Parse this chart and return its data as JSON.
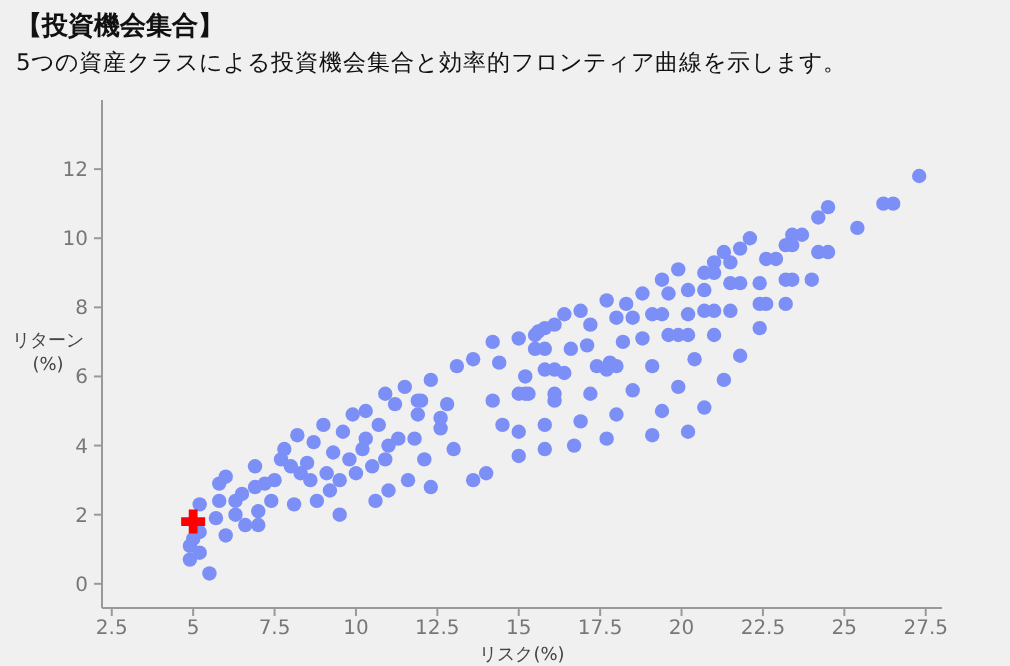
{
  "chart_data": {
    "type": "scatter",
    "title": "【投資機会集合】",
    "subtitle": "5つの資産クラスによる投資機会集合と効率的フロンティア曲線を示します。",
    "xlabel": "リスク(%)",
    "ylabel": "リターン\n(%)",
    "xlim": [
      2.2,
      28
    ],
    "ylim": [
      -0.7,
      14
    ],
    "xticks": [
      2.5,
      5,
      7.5,
      10,
      12.5,
      15,
      17.5,
      20,
      22.5,
      25,
      27.5
    ],
    "yticks": [
      0,
      2,
      4,
      6,
      8,
      10,
      12
    ],
    "grid": false,
    "series": [
      {
        "marker": "circle",
        "color": "#7b8ff7",
        "x": [
          4.9,
          5.0,
          5.2,
          5.5,
          5.2,
          5.2,
          5.7,
          6.0,
          5.8,
          5.8,
          6.0,
          6.3,
          6.3,
          6.6,
          6.9,
          6.9,
          7.0,
          7.0,
          7.4,
          7.5,
          7.7,
          7.8,
          8.1,
          8.2,
          8.3,
          8.5,
          8.7,
          8.8,
          9.0,
          9.1,
          9.2,
          9.5,
          9.5,
          9.8,
          9.9,
          10.0,
          10.3,
          10.3,
          10.6,
          10.7,
          10.9,
          11.0,
          11.2,
          11.3,
          11.5,
          11.6,
          11.9,
          12.1,
          12.3,
          12.3,
          12.6,
          12.8,
          13.0,
          13.1,
          6.5,
          7.2,
          8.0,
          8.6,
          9.3,
          9.6,
          10.2,
          10.5,
          11.0,
          11.8,
          12.0,
          4.9,
          10.9,
          11.9,
          12.6,
          13.6,
          14.2,
          14.4,
          14.2,
          14.0,
          13.6,
          15.0,
          15.2,
          15.2,
          15.0,
          15.0,
          15.6,
          16.1,
          15.8,
          16.1,
          15.8,
          15.8,
          16.4,
          16.4,
          16.7,
          16.9,
          17.1,
          17.2,
          17.7,
          17.8,
          17.7,
          18.0,
          18.2,
          18.3,
          18.5,
          18.8,
          18.8,
          19.1,
          27.3,
          26.2,
          26.5,
          25.4,
          24.5,
          24.2,
          23.7,
          23.4,
          23.2,
          23.4,
          24.2,
          24.5,
          22.6,
          22.9,
          22.1,
          21.8,
          21.5,
          21.3,
          21.0,
          20.7,
          21.0,
          19.9,
          19.4,
          21.5,
          21.8,
          22.4,
          23.2,
          23.4,
          24.0,
          22.6,
          22.4,
          23.2,
          22.4,
          21.8,
          21.3,
          20.7,
          20.2,
          19.4,
          19.9,
          20.4,
          21.0,
          21.5,
          20.7,
          21.0,
          20.2,
          20.7,
          20.2,
          19.6,
          19.4,
          19.1,
          20.2,
          19.9,
          19.6,
          19.1,
          18.5,
          18.0,
          17.2,
          16.9,
          17.4,
          17.7,
          18.0,
          16.6,
          16.1,
          16.1,
          15.3,
          15.0,
          15.5,
          15.8,
          15.5,
          15.8,
          14.5
        ],
        "values": [
          0.7,
          1.3,
          0.9,
          0.3,
          1.5,
          2.3,
          1.9,
          1.4,
          2.4,
          2.9,
          3.1,
          2.4,
          2.0,
          1.7,
          3.4,
          2.8,
          2.1,
          1.7,
          2.4,
          3.0,
          3.6,
          3.9,
          2.3,
          4.3,
          3.2,
          3.5,
          4.1,
          2.4,
          4.6,
          3.2,
          2.7,
          2.0,
          3.0,
          3.6,
          4.9,
          3.2,
          5.0,
          4.2,
          2.4,
          4.6,
          3.6,
          2.7,
          5.2,
          4.2,
          5.7,
          3.0,
          4.9,
          3.6,
          5.9,
          2.8,
          4.5,
          5.2,
          3.9,
          6.3,
          2.6,
          2.9,
          3.4,
          3.0,
          3.8,
          4.4,
          3.9,
          3.4,
          4.0,
          4.2,
          5.3,
          1.1,
          5.5,
          5.3,
          4.8,
          6.5,
          7.0,
          6.4,
          5.3,
          3.2,
          3.0,
          7.1,
          6.0,
          5.5,
          4.4,
          3.7,
          7.3,
          7.5,
          6.2,
          5.3,
          4.6,
          3.9,
          7.8,
          6.1,
          4.0,
          7.9,
          6.9,
          5.5,
          8.2,
          6.4,
          4.2,
          4.9,
          7.0,
          8.1,
          5.6,
          8.4,
          7.1,
          4.3,
          11.8,
          11.0,
          11.0,
          10.3,
          10.9,
          10.6,
          10.1,
          10.1,
          9.8,
          9.8,
          9.6,
          9.6,
          9.4,
          9.4,
          10.0,
          9.7,
          9.3,
          9.6,
          9.3,
          9.0,
          9.0,
          9.1,
          8.8,
          8.7,
          8.7,
          8.7,
          8.8,
          8.8,
          8.8,
          8.1,
          8.1,
          8.1,
          7.4,
          6.6,
          5.9,
          5.1,
          4.4,
          5.0,
          5.7,
          6.5,
          7.2,
          7.9,
          7.9,
          7.9,
          7.8,
          8.5,
          8.5,
          8.4,
          7.8,
          7.8,
          7.2,
          7.2,
          7.2,
          6.3,
          7.7,
          7.7,
          7.5,
          4.7,
          6.3,
          6.2,
          6.3,
          6.8,
          6.2,
          5.5,
          5.5,
          5.5,
          7.2,
          7.4,
          6.8,
          6.8,
          4.6
        ]
      },
      {
        "marker": "cross",
        "color": "#ff0000",
        "x": [
          5.0
        ],
        "values": [
          1.8
        ]
      }
    ]
  }
}
